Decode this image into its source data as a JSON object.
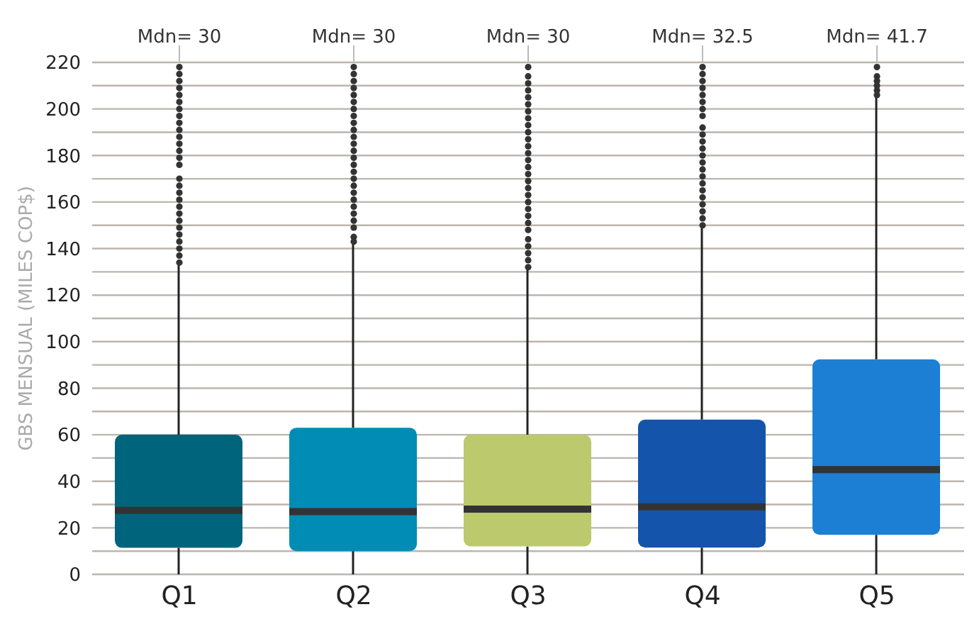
{
  "chart_data": {
    "type": "box",
    "ylabel": "GBS MENSUAL (MILES COP$)",
    "categories": [
      "Q1",
      "Q2",
      "Q3",
      "Q4",
      "Q5"
    ],
    "colors": [
      "#00657c",
      "#008cb4",
      "#bcc96c",
      "#1554ab",
      "#1c7fd4"
    ],
    "boxes": [
      {
        "low": 0,
        "q1": 11.4,
        "median": 27.5,
        "q3": 60,
        "high": 133,
        "outliers": [
          134,
          137,
          140,
          143,
          146,
          149,
          152,
          155,
          158,
          161,
          164,
          167,
          170,
          176,
          179,
          182,
          185,
          188,
          191,
          194,
          197,
          200,
          203,
          206,
          209,
          212,
          215,
          218
        ]
      },
      {
        "low": 0,
        "q1": 10,
        "median": 27,
        "q3": 63,
        "high": 142,
        "outliers": [
          143,
          145,
          149,
          152,
          155,
          158,
          161,
          164,
          167,
          170,
          173,
          176,
          179,
          182,
          185,
          188,
          191,
          194,
          197,
          200,
          203,
          206,
          209,
          212,
          215,
          218
        ]
      },
      {
        "low": 0,
        "q1": 12,
        "median": 28,
        "q3": 60,
        "high": 132,
        "outliers": [
          132,
          135,
          138,
          141,
          144,
          148,
          151,
          154,
          157,
          160,
          163,
          166,
          169,
          172,
          175,
          178,
          181,
          184,
          187,
          190,
          193,
          196,
          199,
          202,
          205,
          208,
          211,
          214,
          218
        ]
      },
      {
        "low": 0,
        "q1": 11.5,
        "median": 29,
        "q3": 66.5,
        "high": 149,
        "outliers": [
          150,
          153,
          156,
          159,
          162,
          165,
          168,
          171,
          174,
          177,
          180,
          183,
          186,
          189,
          192,
          197,
          200,
          203,
          206,
          209,
          212,
          215,
          218
        ]
      },
      {
        "low": 0,
        "q1": 17,
        "median": 45,
        "q3": 92.4,
        "high": 205,
        "outliers": [
          206,
          208,
          210,
          212,
          214,
          218
        ]
      }
    ],
    "annotations": [
      "Mdn= 30",
      "Mdn= 30",
      "Mdn= 30",
      "Mdn= 32.5",
      "Mdn= 41.7"
    ],
    "ylim": [
      0,
      220
    ],
    "yticks": [
      0,
      {
        "value": 10,
        "label": null
      },
      20,
      {
        "value": 30,
        "label": null
      },
      40,
      {
        "value": 50,
        "label": null
      },
      60,
      {
        "value": 70,
        "label": null
      },
      80,
      {
        "value": 90,
        "label": null
      },
      100,
      {
        "value": 110,
        "label": null
      },
      120,
      {
        "value": 130,
        "label": null
      },
      140,
      {
        "value": 150,
        "label": null
      },
      160,
      {
        "value": 170,
        "label": null
      },
      180,
      {
        "value": 190,
        "label": null
      },
      200,
      {
        "value": 210,
        "label": null
      },
      220
    ],
    "grid": "y"
  }
}
